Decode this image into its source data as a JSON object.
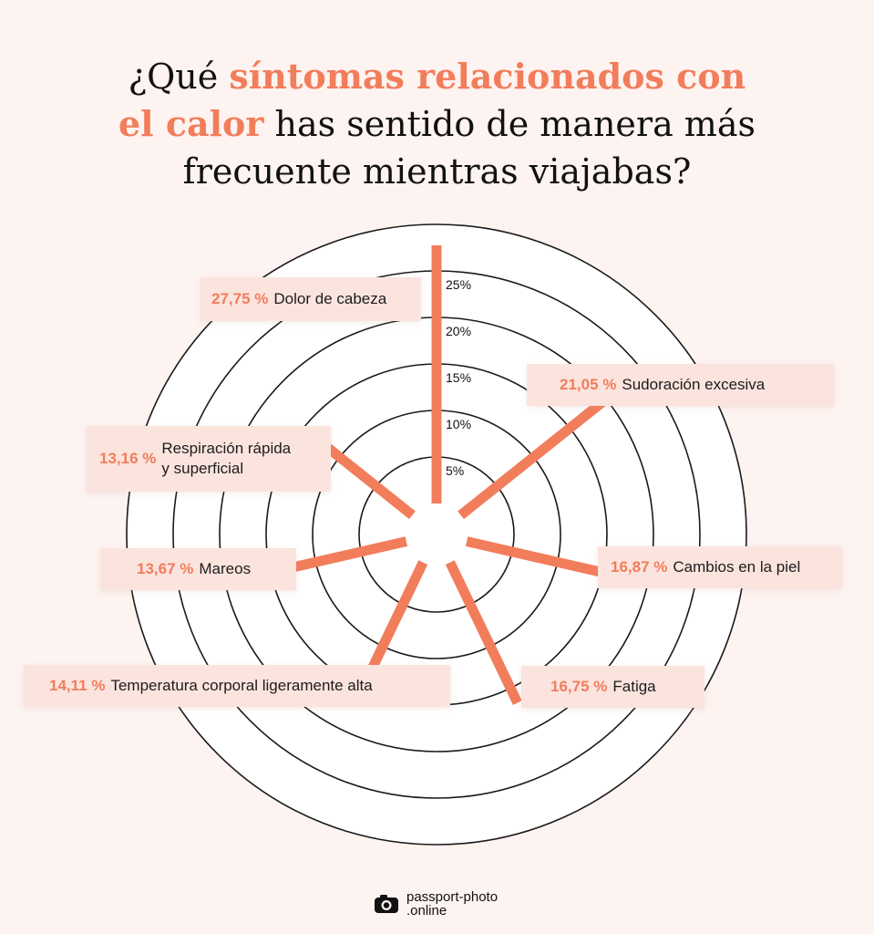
{
  "title": {
    "line1_pre": "¿Qué ",
    "line1_hl": "síntomas relacionados con",
    "line2_hl": "el calor",
    "line2_post": " has sentido de manera más",
    "line3": "frecuente mientras viajabas?"
  },
  "chart_data": {
    "type": "radial-bar",
    "axis_ticks": [
      "5%",
      "10%",
      "15%",
      "20%",
      "25%"
    ],
    "tick_values": [
      5,
      10,
      15,
      20,
      25
    ],
    "series": [
      {
        "label": "Dolor de cabeza",
        "value": 27.75,
        "value_text": "27,75 %"
      },
      {
        "label": "Sudoración excesiva",
        "value": 21.05,
        "value_text": "21,05 %"
      },
      {
        "label": "Cambios en la piel",
        "value": 16.87,
        "value_text": "16,87 %"
      },
      {
        "label": "Fatiga",
        "value": 16.75,
        "value_text": "16,75 %"
      },
      {
        "label": "Temperatura corporal ligeramente alta",
        "value": 14.11,
        "value_text": "14,11 %"
      },
      {
        "label": "Mareos",
        "value": 13.67,
        "value_text": "13,67 %"
      },
      {
        "label": "Respiración rápida\ny superficial",
        "value": 13.16,
        "value_text": "13,16 %"
      }
    ],
    "bar_color": "#f27d5b",
    "ring_color": "#1a1a1a"
  },
  "footer": {
    "brand_line1": "passport-photo",
    "brand_line2": ".online",
    "logo_icon": "camera-icon"
  }
}
